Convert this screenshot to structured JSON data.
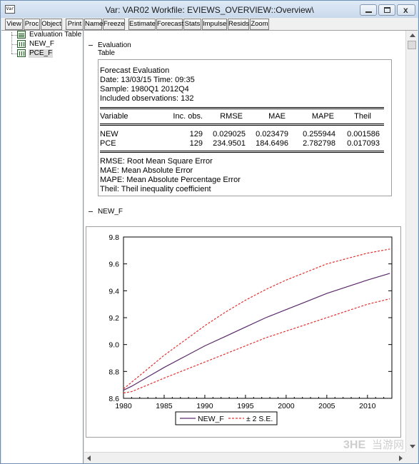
{
  "window": {
    "icon_label": "Var",
    "title": "Var: VAR02    Workfile: EVIEWS_OVERVIEW::Overview\\"
  },
  "toolbar": {
    "buttons": [
      "View",
      "Proc",
      "Object",
      "Print",
      "Name",
      "Freeze",
      "Estimate",
      "Forecast",
      "Stats",
      "Impulse",
      "Resids",
      "Zoom"
    ]
  },
  "tree": {
    "items": [
      {
        "label": "Evaluation Table",
        "icon": "table-icon",
        "selected": false
      },
      {
        "label": "NEW_F",
        "icon": "series-icon",
        "selected": false
      },
      {
        "label": "PCE_F",
        "icon": "series-icon",
        "selected": true
      }
    ]
  },
  "evaluation": {
    "section_title": "Evaluation Table",
    "heading": "Forecast Evaluation",
    "date_line": "Date: 13/03/15   Time: 09:35",
    "sample_line": "Sample: 1980Q1 2012Q4",
    "obs_line": "Included observations: 132",
    "columns": [
      "Variable",
      "Inc. obs.",
      "RMSE",
      "MAE",
      "MAPE",
      "Theil"
    ],
    "rows": [
      [
        "NEW",
        "129",
        "0.029025",
        "0.023479",
        "0.255944",
        "0.001586"
      ],
      [
        "PCE",
        "129",
        "234.9501",
        "184.6496",
        "2.782798",
        "0.017093"
      ]
    ],
    "notes": [
      "RMSE:  Root Mean Square Error",
      "MAE:  Mean Absolute Error",
      "MAPE:  Mean Absolute Percentage Error",
      "Theil:  Theil inequality coefficient"
    ]
  },
  "graph_section": {
    "title": "NEW_F"
  },
  "chart_data": {
    "type": "line",
    "title": "",
    "xlabel": "",
    "ylabel": "",
    "xlim": [
      1980,
      2013
    ],
    "ylim": [
      8.6,
      9.8
    ],
    "x_ticks": [
      1980,
      1985,
      1990,
      1995,
      2000,
      2005,
      2010
    ],
    "y_ticks": [
      8.6,
      8.8,
      9.0,
      9.2,
      9.4,
      9.6,
      9.8
    ],
    "x": [
      1980.0,
      1981.0,
      1983.0,
      1985.0,
      1987.5,
      1990.0,
      1992.5,
      1995.0,
      1997.5,
      2000.0,
      2002.5,
      2005.0,
      2007.5,
      2010.0,
      2012.75
    ],
    "series": [
      {
        "name": "NEW_F",
        "color": "#5a2a6a",
        "dash": false,
        "values": [
          8.66,
          8.69,
          8.76,
          8.83,
          8.91,
          8.99,
          9.06,
          9.13,
          9.2,
          9.26,
          9.32,
          9.38,
          9.43,
          9.48,
          9.53
        ]
      },
      {
        "name": "± 2 S.E.",
        "color": "#e03030",
        "dash": true,
        "values": [
          8.67,
          8.72,
          8.82,
          8.92,
          9.03,
          9.14,
          9.24,
          9.33,
          9.41,
          9.48,
          9.54,
          9.6,
          9.64,
          9.68,
          9.71
        ]
      },
      {
        "name": "",
        "color": "#e03030",
        "dash": true,
        "values": [
          8.64,
          8.65,
          8.7,
          8.75,
          8.81,
          8.87,
          8.93,
          8.99,
          9.05,
          9.1,
          9.15,
          9.2,
          9.25,
          9.3,
          9.34
        ]
      }
    ],
    "grid": false,
    "legend": "bottom-center"
  },
  "watermark": {
    "logo_text": "3HE",
    "site_text": "当游网"
  }
}
